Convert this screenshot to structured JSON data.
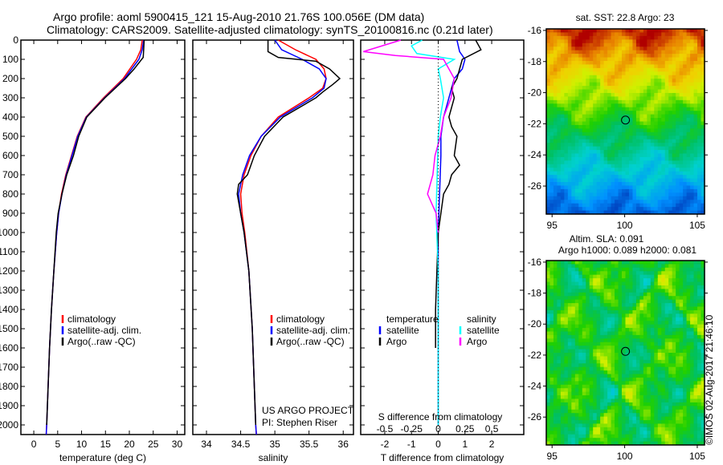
{
  "title_line1": "Argo profile: aoml 5900415_121 15-Aug-2010 21.76S 100.056E (DM data)",
  "title_line2": "Climatology: CARS2009. Satellite-adjusted climatology: synTS_20100816.nc (0.21d later)",
  "credit": "©IMOS 02-Aug-2017 21:46:10",
  "colors": {
    "climatology": "#ff0000",
    "satellite": "#0000ff",
    "argo": "#000000",
    "sal_satellite": "#00ffff",
    "sal_argo": "#ff00ff"
  },
  "chart_data": [
    {
      "type": "line",
      "name": "temperature",
      "xlabel": "temperature (deg C)",
      "xlim": [
        -2.7,
        31.6
      ],
      "ylim": [
        2050,
        0
      ],
      "xticks": [
        0,
        5,
        10,
        15,
        20,
        25,
        30
      ],
      "yticks": [
        0,
        100,
        200,
        300,
        400,
        500,
        600,
        700,
        800,
        900,
        1000,
        1100,
        1200,
        1300,
        1400,
        1500,
        1600,
        1700,
        1800,
        1900,
        2000
      ],
      "legend": [
        "climatology",
        "satellite-adj. clim.",
        "Argo(..raw -QC)"
      ],
      "series": [
        {
          "name": "climatology",
          "depth": [
            0,
            50,
            100,
            200,
            300,
            400,
            500,
            600,
            700,
            800,
            900,
            1000,
            1200,
            1400,
            1600,
            1800,
            2000,
            2050
          ],
          "values": [
            22.7,
            22.4,
            21.5,
            18.7,
            14.6,
            10.9,
            9.1,
            7.9,
            6.7,
            5.8,
            5.2,
            4.8,
            4.2,
            3.7,
            3.3,
            3.0,
            2.7,
            2.6
          ]
        },
        {
          "name": "satellite-adj. clim.",
          "depth": [
            0,
            50,
            100,
            200,
            300,
            400,
            500,
            600,
            700,
            800,
            900,
            1000,
            1200,
            1400,
            1600,
            1800,
            2000,
            2050
          ],
          "values": [
            23.0,
            22.7,
            22.0,
            19.0,
            14.8,
            11.0,
            9.2,
            8.0,
            6.8,
            5.9,
            5.2,
            4.8,
            4.2,
            3.7,
            3.3,
            3.0,
            2.7,
            2.6
          ]
        },
        {
          "name": "Argo(..raw -QC)",
          "depth": [
            0,
            50,
            90,
            150,
            200,
            300,
            400,
            500,
            600,
            700,
            800,
            900,
            1000,
            1200,
            1400,
            1600,
            1800,
            2000
          ],
          "values": [
            23.1,
            23.0,
            22.9,
            21.0,
            19.2,
            14.9,
            11.1,
            9.4,
            8.3,
            6.9,
            5.9,
            5.1,
            4.7,
            4.2,
            3.7,
            3.3,
            3.0,
            2.7
          ]
        }
      ]
    },
    {
      "type": "line",
      "name": "salinity",
      "xlabel": "salinity",
      "xlim": [
        33.8,
        36.15
      ],
      "ylim": [
        2050,
        0
      ],
      "xticks": [
        34,
        34.5,
        35,
        35.5,
        36
      ],
      "legend": [
        "climatology",
        "satellite-adj. clim.",
        "Argo(..raw -QC)"
      ],
      "annotation": [
        "US ARGO PROJECT",
        "PI: Stephen Riser"
      ],
      "series": [
        {
          "name": "climatology",
          "depth": [
            0,
            50,
            100,
            150,
            200,
            250,
            300,
            400,
            500,
            600,
            700,
            800,
            900,
            1000,
            1200,
            1500,
            2000,
            2050
          ],
          "values": [
            35.05,
            35.3,
            35.6,
            35.72,
            35.75,
            35.7,
            35.5,
            35.05,
            34.8,
            34.65,
            34.55,
            34.5,
            34.52,
            34.56,
            34.62,
            34.67,
            34.72,
            34.73
          ]
        },
        {
          "name": "satellite-adj. clim.",
          "depth": [
            0,
            50,
            100,
            150,
            200,
            250,
            300,
            400,
            500,
            600,
            700,
            800,
            900,
            1000,
            1200,
            1500,
            2000,
            2050
          ],
          "values": [
            35.0,
            35.1,
            35.4,
            35.65,
            35.75,
            35.72,
            35.55,
            35.08,
            34.8,
            34.63,
            34.53,
            34.47,
            34.5,
            34.55,
            34.62,
            34.67,
            34.72,
            34.73
          ]
        },
        {
          "name": "Argo(..raw -QC)",
          "depth": [
            0,
            60,
            90,
            110,
            150,
            200,
            230,
            270,
            300,
            400,
            500,
            600,
            650,
            700,
            750,
            800,
            900,
            1000,
            1200,
            1500,
            2000
          ],
          "values": [
            34.9,
            34.9,
            35.05,
            35.6,
            35.8,
            35.95,
            35.85,
            35.7,
            35.6,
            35.12,
            34.85,
            34.7,
            34.65,
            34.6,
            34.47,
            34.45,
            34.5,
            34.55,
            34.62,
            34.67,
            34.72
          ]
        }
      ]
    },
    {
      "type": "line",
      "name": "difference",
      "xlabel": "T difference from climatology",
      "xlabel2": "S difference from climatology",
      "xlim": [
        -2.9,
        3.2
      ],
      "ylim": [
        2050,
        0
      ],
      "xticks": [
        -2,
        -1,
        0,
        1,
        2
      ],
      "xticks2": [
        -0.5,
        -0.25,
        0,
        0.25,
        0.5
      ],
      "legend_temperature": {
        "title": "temperature",
        "items": [
          "satellite",
          "Argo"
        ]
      },
      "legend_salinity": {
        "title": "salinity",
        "items": [
          "satellite",
          "Argo"
        ]
      },
      "series": [
        {
          "name": "temperature satellite",
          "unit": "T",
          "depth": [
            0,
            60,
            100,
            150,
            200,
            300,
            400,
            500,
            600,
            800,
            1000,
            1400,
            1600,
            2000
          ],
          "values": [
            0.7,
            0.8,
            1.0,
            0.9,
            0.6,
            0.4,
            0.2,
            0.1,
            0.1,
            0.05,
            0.0,
            0.0,
            0.0,
            0.0
          ]
        },
        {
          "name": "temperature Argo",
          "unit": "T",
          "depth": [
            0,
            50,
            100,
            150,
            200,
            250,
            300,
            400,
            450,
            500,
            600,
            650,
            700,
            750,
            800,
            900,
            1000,
            1400,
            1600
          ],
          "values": [
            1.4,
            1.6,
            0.9,
            0.8,
            0.7,
            0.5,
            0.6,
            0.4,
            0.5,
            0.7,
            0.6,
            0.8,
            0.5,
            0.4,
            0.2,
            0.1,
            0.0,
            -0.1,
            -0.1
          ]
        },
        {
          "name": "salinity satellite",
          "unit": "S",
          "depth": [
            0,
            30,
            70,
            100,
            150,
            200,
            300,
            400,
            500,
            700,
            900,
            1200,
            1600,
            2000
          ],
          "values": [
            -0.15,
            -0.25,
            -0.2,
            0.15,
            0.0,
            0.02,
            0.05,
            0.02,
            0.0,
            -0.01,
            -0.02,
            0.0,
            0.0,
            0.0
          ]
        },
        {
          "name": "salinity Argo",
          "unit": "S",
          "depth": [
            0,
            60,
            80,
            100,
            150,
            200,
            300,
            400,
            500,
            600,
            700,
            800,
            900,
            1000
          ],
          "values": [
            -0.35,
            -0.7,
            -0.4,
            0.05,
            0.1,
            0.15,
            0.12,
            0.05,
            0.02,
            -0.03,
            -0.05,
            -0.1,
            -0.02,
            0.0
          ]
        }
      ]
    },
    {
      "type": "heatmap",
      "name": "sst-map",
      "title": "sat. SST: 22.8 Argo: 23",
      "xlim": [
        94.6,
        105.5
      ],
      "ylim": [
        -27.8,
        -15.9
      ],
      "xticks": [
        95,
        100,
        105
      ],
      "yticks": [
        -16,
        -18,
        -20,
        -22,
        -24,
        -26
      ],
      "argo_position": {
        "lon": 100.056,
        "lat": -21.76
      }
    },
    {
      "type": "heatmap",
      "name": "sla-map",
      "title": "Altim. SLA: 0.091",
      "subtitle": "Argo h1000: 0.089 h2000: 0.081",
      "xlim": [
        94.6,
        105.5
      ],
      "ylim": [
        -27.8,
        -15.9
      ],
      "xticks": [
        95,
        100,
        105
      ],
      "yticks": [
        -16,
        -18,
        -20,
        -22,
        -24,
        -26
      ],
      "argo_position": {
        "lon": 100.056,
        "lat": -21.76
      }
    }
  ]
}
